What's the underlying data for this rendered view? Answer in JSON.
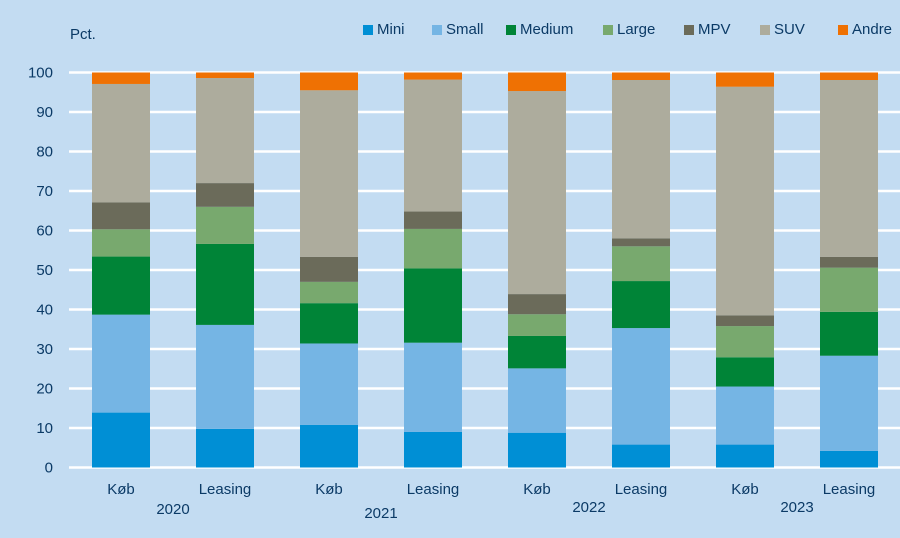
{
  "chart_data": {
    "type": "bar",
    "stacked": true,
    "title": "",
    "ylabel": "Pct.",
    "xlabel": "",
    "ylim": [
      0,
      100
    ],
    "yticks": [
      0,
      10,
      20,
      30,
      40,
      50,
      60,
      70,
      80,
      90,
      100
    ],
    "grid": true,
    "legend_position": "top-right",
    "categories": [
      "Køb",
      "Leasing",
      "Køb",
      "Leasing",
      "Køb",
      "Leasing",
      "Køb",
      "Leasing"
    ],
    "groups": [
      {
        "label": "2020",
        "categories": [
          0,
          1
        ]
      },
      {
        "label": "2021",
        "categories": [
          2,
          3
        ]
      },
      {
        "label": "2022",
        "categories": [
          4,
          5
        ]
      },
      {
        "label": "2023",
        "categories": [
          6,
          7
        ]
      }
    ],
    "series": [
      {
        "name": "Mini",
        "color": "#008fd5",
        "values": [
          13.9,
          9.8,
          10.8,
          9.0,
          8.8,
          5.8,
          5.8,
          4.2
        ]
      },
      {
        "name": "Small",
        "color": "#75b5e4",
        "values": [
          24.8,
          26.3,
          20.6,
          22.6,
          16.3,
          29.5,
          14.7,
          24.1
        ]
      },
      {
        "name": "Medium",
        "color": "#008437",
        "values": [
          14.7,
          20.5,
          10.2,
          18.8,
          8.2,
          11.9,
          7.4,
          11.1
        ]
      },
      {
        "name": "Large",
        "color": "#78a96e",
        "values": [
          6.9,
          9.4,
          5.4,
          10.0,
          5.5,
          8.8,
          7.9,
          11.2
        ]
      },
      {
        "name": "MPV",
        "color": "#6b6b5a",
        "values": [
          6.8,
          6.0,
          6.3,
          4.4,
          5.1,
          2.0,
          2.7,
          2.7
        ]
      },
      {
        "name": "SUV",
        "color": "#adac9d",
        "values": [
          30.0,
          26.6,
          42.2,
          33.4,
          51.4,
          40.1,
          57.9,
          44.8
        ]
      },
      {
        "name": "Andre",
        "color": "#ef7103",
        "values": [
          2.9,
          1.4,
          4.5,
          1.8,
          4.7,
          1.9,
          3.6,
          1.9
        ]
      }
    ]
  },
  "axis": {
    "y_unit_label": "Pct."
  }
}
